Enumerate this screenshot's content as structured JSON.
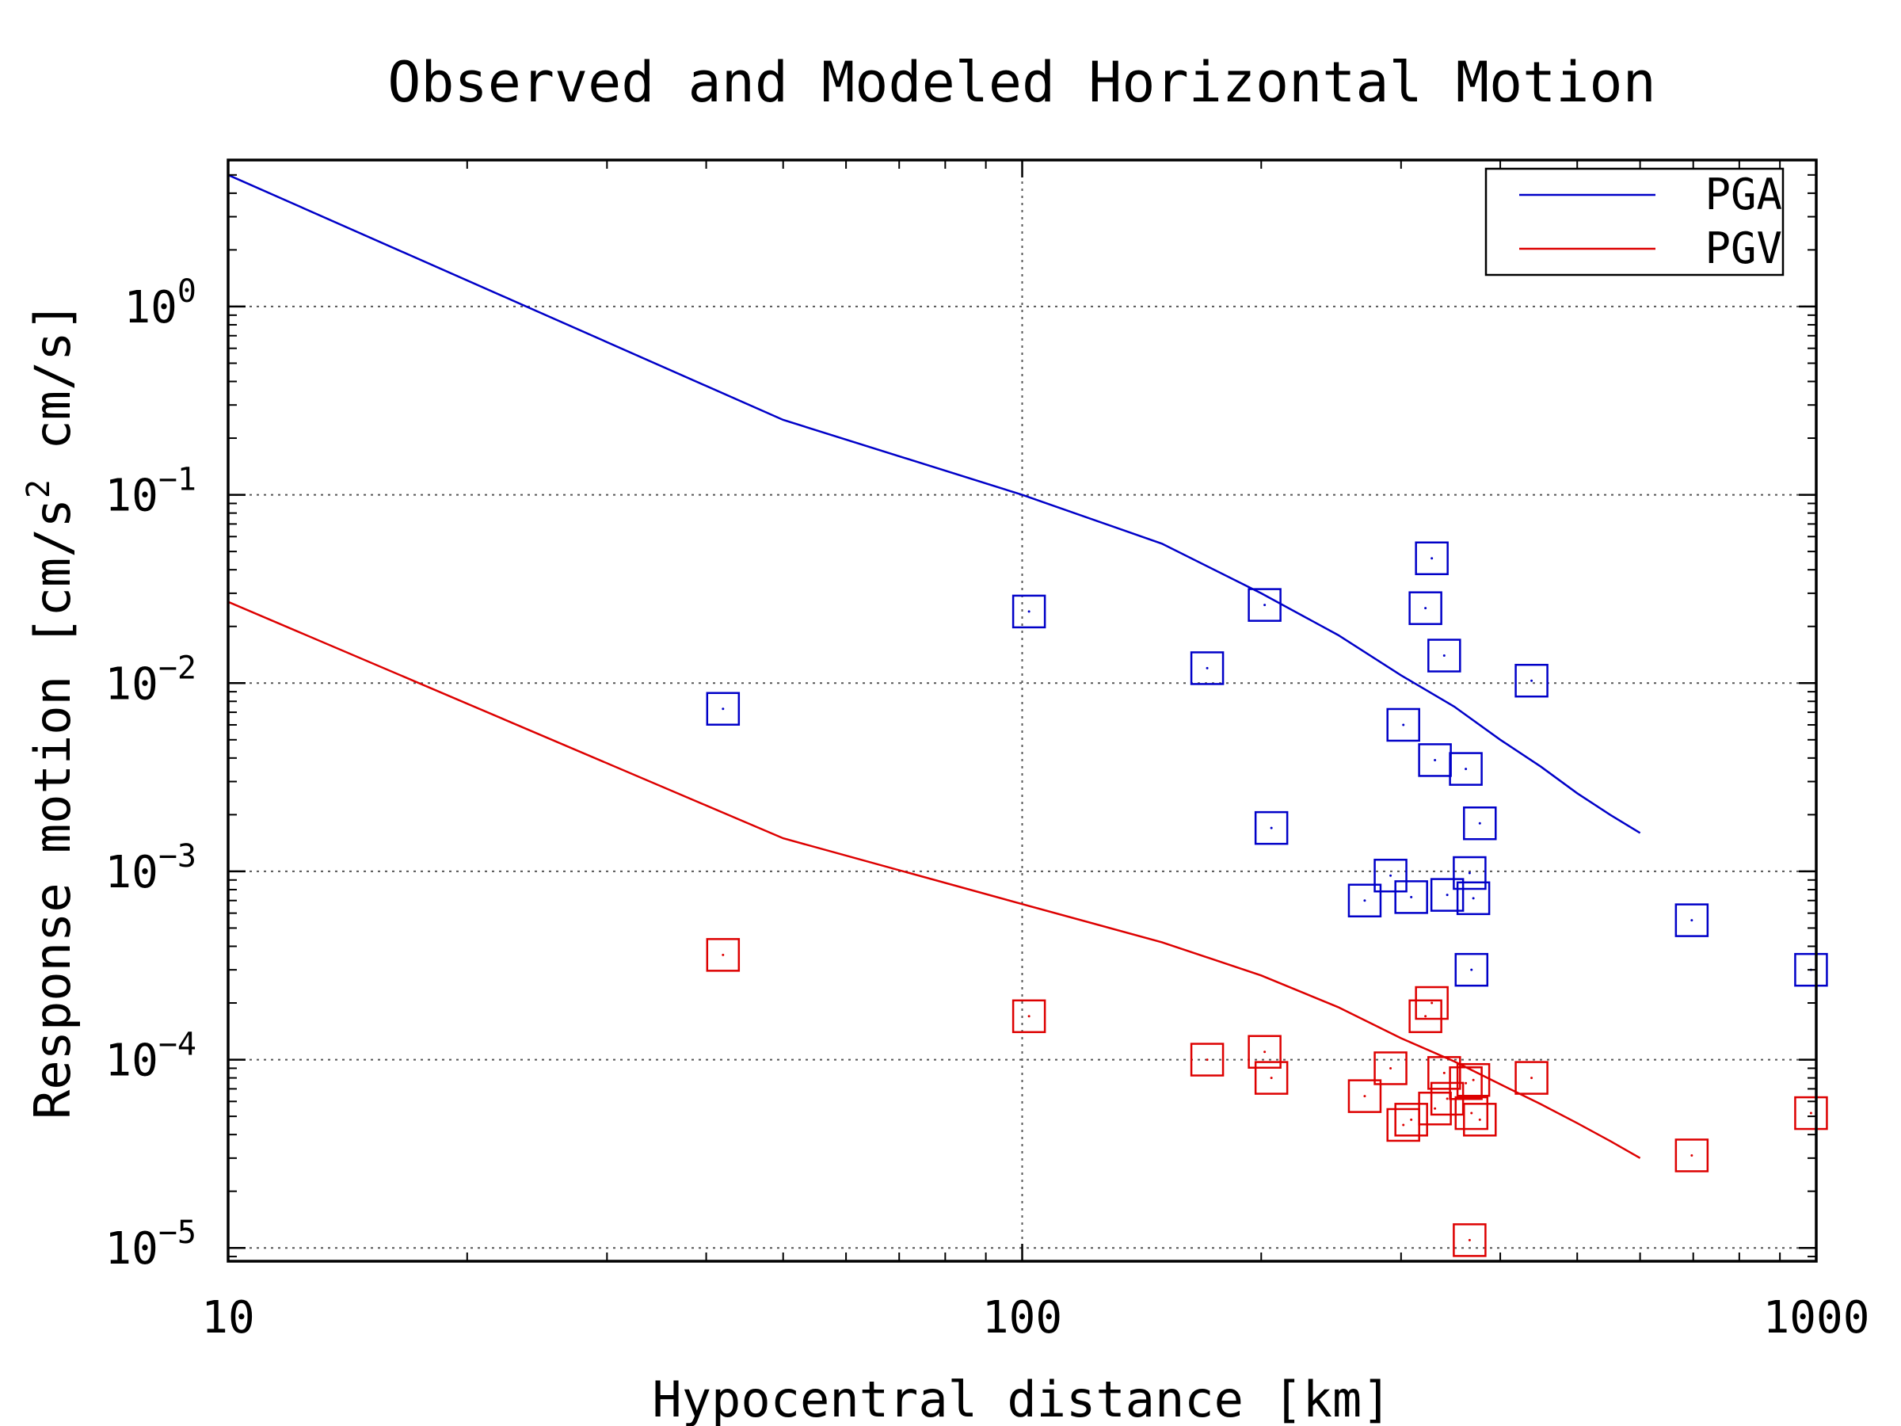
{
  "chart_data": {
    "type": "scatter",
    "title": "Observed and Modeled Horizontal Motion",
    "xlabel": "Hypocentral distance [km]",
    "ylabel": "Response motion [cm/s² cm/s]",
    "ylabel_parts": {
      "a": "Response motion [cm/s",
      "sup": "2",
      "b": " cm/s]"
    },
    "x_scale": "log",
    "y_scale": "log",
    "xlim": [
      10,
      1000
    ],
    "ylim": [
      8.5e-06,
      6
    ],
    "x_ticks": [
      {
        "value": 10,
        "label": "10"
      },
      {
        "value": 100,
        "label": "100"
      },
      {
        "value": 1000,
        "label": "1000"
      }
    ],
    "y_ticks": [
      {
        "value": 1,
        "base": "10",
        "exp": "0"
      },
      {
        "value": 0.1,
        "base": "10",
        "exp": "-1"
      },
      {
        "value": 0.01,
        "base": "10",
        "exp": "-2"
      },
      {
        "value": 0.001,
        "base": "10",
        "exp": "-3"
      },
      {
        "value": 0.0001,
        "base": "10",
        "exp": "-4"
      },
      {
        "value": 1e-05,
        "base": "10",
        "exp": "-5"
      }
    ],
    "grid": true,
    "legend_position": "top-right",
    "legend": [
      {
        "name": "PGA",
        "color": "#0000c8"
      },
      {
        "name": "PGV",
        "color": "#dd0000"
      }
    ],
    "lines": [
      {
        "name": "PGA",
        "color": "#0000c8",
        "x": [
          10,
          50,
          100,
          150,
          200,
          250,
          300,
          350,
          400,
          450,
          500,
          550,
          600
        ],
        "y": [
          5.0,
          0.25,
          0.1,
          0.055,
          0.03,
          0.018,
          0.011,
          0.0075,
          0.005,
          0.0036,
          0.0026,
          0.002,
          0.0016
        ]
      },
      {
        "name": "PGV",
        "color": "#dd0000",
        "x": [
          10,
          50,
          100,
          150,
          200,
          250,
          300,
          350,
          400,
          450,
          500,
          550,
          600
        ],
        "y": [
          0.027,
          0.0015,
          0.00067,
          0.00042,
          0.00028,
          0.00019,
          0.00013,
          9.8e-05,
          7.4e-05,
          5.8e-05,
          4.6e-05,
          3.7e-05,
          3e-05
        ]
      }
    ],
    "series": [
      {
        "name": "PGA",
        "color": "#0000c8",
        "marker": "square",
        "points": [
          [
            42,
            0.0073
          ],
          [
            102,
            0.024
          ],
          [
            171,
            0.012
          ],
          [
            202,
            0.026
          ],
          [
            206,
            0.0017
          ],
          [
            270,
            0.0007
          ],
          [
            291,
            0.00095
          ],
          [
            302,
            0.006
          ],
          [
            309,
            0.00073
          ],
          [
            322,
            0.025
          ],
          [
            328,
            0.046
          ],
          [
            331,
            0.0039
          ],
          [
            340,
            0.014
          ],
          [
            343,
            0.00075
          ],
          [
            362,
            0.0035
          ],
          [
            366,
            0.00098
          ],
          [
            368,
            0.0003
          ],
          [
            370,
            0.00072
          ],
          [
            377,
            0.0018
          ],
          [
            438,
            0.0103
          ],
          [
            697,
            0.00055
          ],
          [
            985,
            0.0003
          ]
        ]
      },
      {
        "name": "PGV",
        "color": "#dd0000",
        "marker": "square",
        "points": [
          [
            42,
            0.00036
          ],
          [
            102,
            0.00017
          ],
          [
            171,
            0.0001
          ],
          [
            202,
            0.00011
          ],
          [
            206,
            8e-05
          ],
          [
            270,
            6.4e-05
          ],
          [
            291,
            9e-05
          ],
          [
            302,
            4.5e-05
          ],
          [
            309,
            4.8e-05
          ],
          [
            322,
            0.00017
          ],
          [
            328,
            0.0002
          ],
          [
            331,
            5.5e-05
          ],
          [
            340,
            8.5e-05
          ],
          [
            343,
            6.2e-05
          ],
          [
            362,
            7.5e-05
          ],
          [
            366,
            1.1e-05
          ],
          [
            368,
            5.2e-05
          ],
          [
            370,
            7.8e-05
          ],
          [
            377,
            4.8e-05
          ],
          [
            438,
            8e-05
          ],
          [
            697,
            3.1e-05
          ],
          [
            985,
            5.2e-05
          ]
        ]
      }
    ]
  }
}
